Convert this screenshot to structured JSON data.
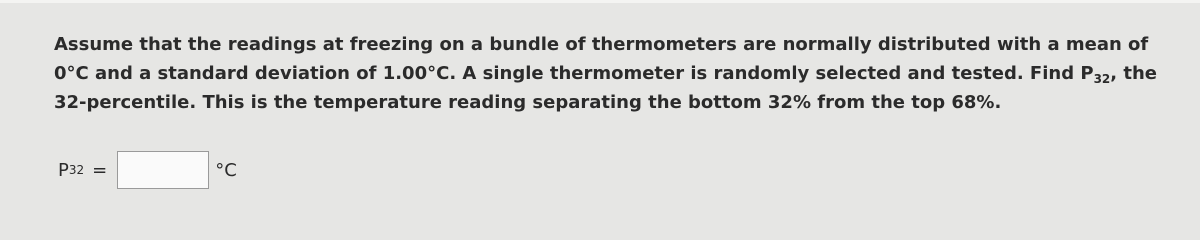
{
  "question": {
    "text_before": "Assume that the readings at freezing on a bundle of thermometers are normally distributed with a mean of 0°C and a standard deviation of 1.00°C. A single thermometer is randomly selected and tested. Find P",
    "subscript": "32",
    "text_after": ", the 32-percentile. This is the temperature reading separating the bottom 32% from the top 68%."
  },
  "answer": {
    "variable": "P",
    "subscript": "32",
    "equals": "=",
    "unit": "°C"
  }
}
